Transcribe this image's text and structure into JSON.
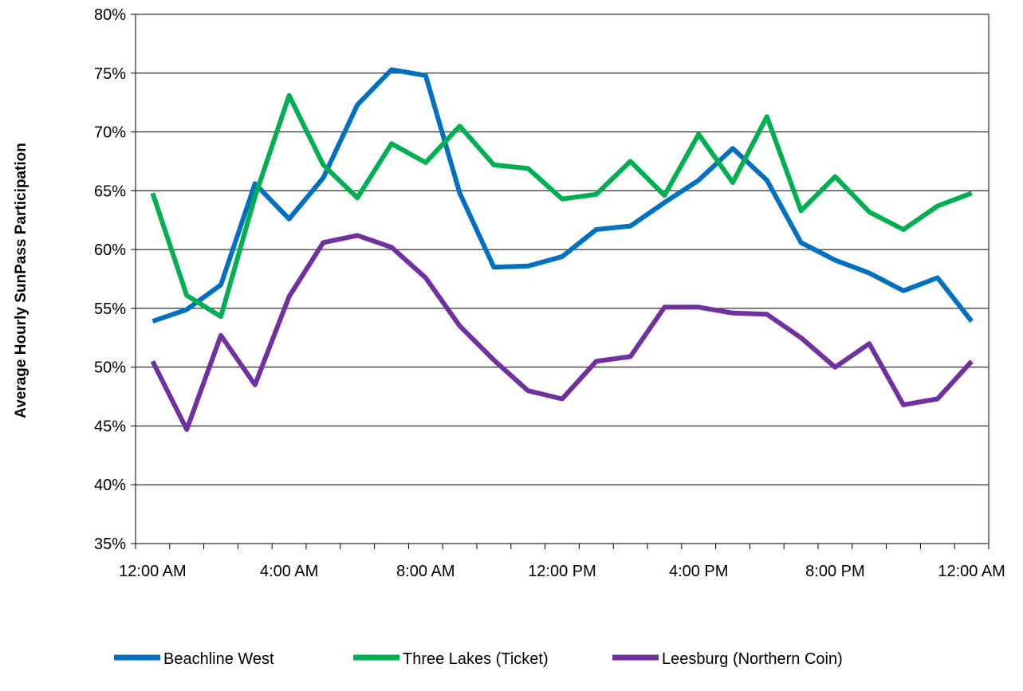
{
  "chart_data": {
    "type": "line",
    "title": "",
    "xlabel": "",
    "ylabel": "Average Hourly SunPass Participation",
    "x_tick_labels": [
      "12:00 AM",
      "4:00 AM",
      "8:00 AM",
      "12:00 PM",
      "4:00 PM",
      "8:00 PM",
      "12:00 AM"
    ],
    "y_tick_labels": [
      "35%",
      "40%",
      "45%",
      "50%",
      "55%",
      "60%",
      "65%",
      "70%",
      "75%",
      "80%"
    ],
    "ylim": [
      35,
      80
    ],
    "y_unit": "%",
    "grid": "horizontal",
    "legend_position": "bottom",
    "x": [
      "12:00 AM",
      "1:00 AM",
      "2:00 AM",
      "3:00 AM",
      "4:00 AM",
      "5:00 AM",
      "6:00 AM",
      "7:00 AM",
      "8:00 AM",
      "9:00 AM",
      "10:00 AM",
      "11:00 AM",
      "12:00 PM",
      "1:00 PM",
      "2:00 PM",
      "3:00 PM",
      "4:00 PM",
      "5:00 PM",
      "6:00 PM",
      "7:00 PM",
      "8:00 PM",
      "9:00 PM",
      "10:00 PM",
      "11:00 PM",
      "12:00 AM"
    ],
    "series": [
      {
        "name": "Beachline West",
        "color": "#0070C0",
        "values": [
          53.9,
          54.9,
          57.0,
          65.6,
          62.6,
          66.1,
          72.3,
          75.3,
          74.8,
          64.8,
          58.5,
          58.6,
          59.4,
          61.7,
          62.0,
          64.0,
          65.9,
          68.6,
          65.9,
          60.6,
          59.1,
          58.0,
          56.5,
          57.6,
          53.9
        ]
      },
      {
        "name": "Three Lakes (Ticket)",
        "color": "#00B050",
        "values": [
          64.8,
          56.1,
          54.3,
          64.5,
          73.1,
          67.2,
          64.4,
          69.0,
          67.4,
          70.5,
          67.2,
          66.9,
          64.3,
          64.7,
          67.5,
          64.6,
          69.8,
          65.7,
          71.3,
          63.3,
          66.2,
          63.2,
          61.7,
          63.7,
          64.8
        ]
      },
      {
        "name": "Leesburg (Northern Coin)",
        "color": "#7030A0",
        "values": [
          50.5,
          44.7,
          52.7,
          48.5,
          56.0,
          60.6,
          61.2,
          60.2,
          57.6,
          53.5,
          50.6,
          48.0,
          47.3,
          50.5,
          50.9,
          55.1,
          55.1,
          54.6,
          54.5,
          52.5,
          50.0,
          52.0,
          46.8,
          47.3,
          50.5
        ]
      }
    ]
  }
}
